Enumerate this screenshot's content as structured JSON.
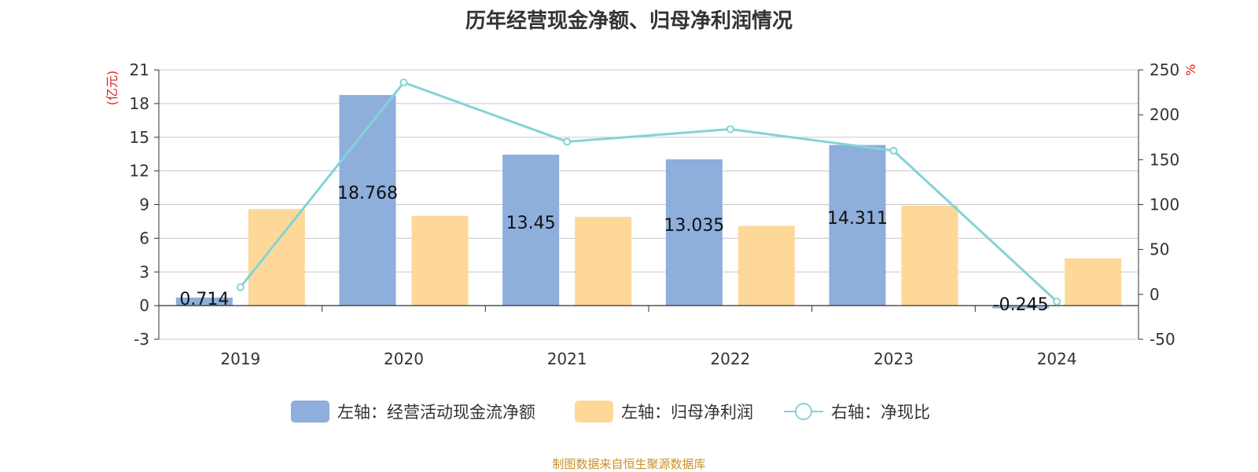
{
  "colors": {
    "cash_flow_bar": "#8eaedb",
    "net_profit_bar": "#fed899",
    "ratio_line": "#84d3d6",
    "axis_unit": "#e02020",
    "axis_text": "#333333",
    "grid": "#c8c8c8",
    "source": "#c8902a"
  },
  "chart_data": {
    "type": "bar",
    "title": "历年经营现金净额、归母净利润情况",
    "categories": [
      "2019",
      "2020",
      "2021",
      "2022",
      "2023",
      "2024"
    ],
    "left_axis": {
      "unit": "(亿元)",
      "ylim": [
        -3,
        21
      ],
      "ticks": [
        "21",
        "18",
        "15",
        "12",
        "9",
        "6",
        "3",
        "0",
        "-3"
      ]
    },
    "right_axis": {
      "unit": "%",
      "ylim": [
        -50,
        250
      ],
      "ticks": [
        "250",
        "200",
        "150",
        "100",
        "50",
        "0",
        "-50"
      ]
    },
    "series": [
      {
        "name": "左轴：经营活动现金流净额",
        "axis": "left",
        "kind": "bar",
        "values": [
          0.714,
          18.768,
          13.45,
          13.035,
          14.311,
          -0.245
        ],
        "labels": [
          "0.714",
          "18.768",
          "13.45",
          "13.035",
          "14.311",
          "-0.245"
        ]
      },
      {
        "name": "左轴：归母净利润",
        "axis": "left",
        "kind": "bar",
        "values": [
          8.6,
          8.0,
          7.9,
          7.1,
          8.9,
          4.2
        ]
      },
      {
        "name": "右轴：净现比",
        "axis": "right",
        "kind": "line",
        "values": [
          8,
          236,
          170,
          184,
          160,
          -8
        ]
      }
    ],
    "grid": true,
    "legend_position": "bottom-center"
  },
  "footer": {
    "source": "制图数据来自恒生聚源数据库"
  }
}
